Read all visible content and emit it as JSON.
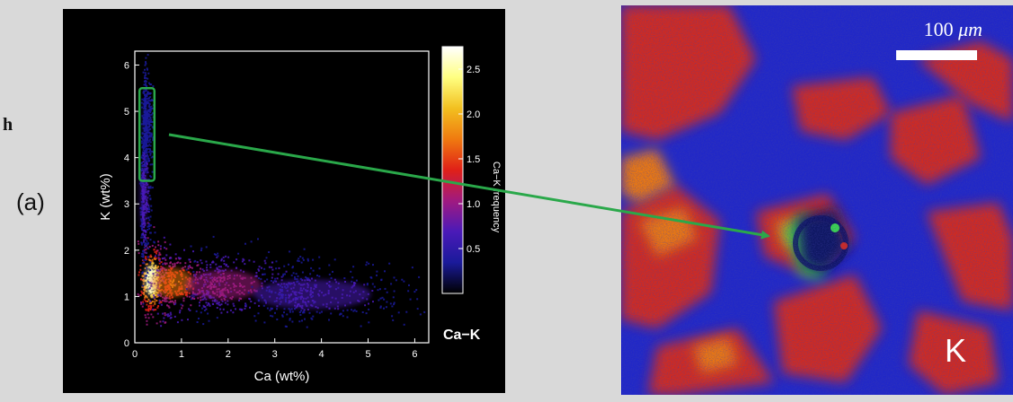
{
  "stray_letter": "h",
  "panel_label": "(a)",
  "chart_data": {
    "type": "scatter",
    "subtype": "density-scatter",
    "title": "",
    "xlabel": "Ca (wt%)",
    "ylabel": "K (wt%)",
    "xlim": [
      0,
      6.3
    ],
    "ylim": [
      0,
      6.3
    ],
    "x_ticks": [
      0,
      1,
      2,
      3,
      4,
      5,
      6
    ],
    "y_ticks": [
      0,
      1,
      2,
      3,
      4,
      5,
      6
    ],
    "grid": false,
    "plot_tag": "Ca−K",
    "colorbar": {
      "label": "Ca−K frequency",
      "ticks": [
        0.5,
        1.0,
        1.5,
        2.0,
        2.5
      ],
      "range": [
        0,
        2.75
      ],
      "colors": [
        "#000000",
        "#1a1a9a",
        "#4a1ab8",
        "#a01a80",
        "#e02018",
        "#f07a10",
        "#f2c020",
        "#ffff80",
        "#ffffff"
      ]
    },
    "density_blobs": [
      {
        "x": 0.35,
        "y": 1.35,
        "sx": 0.16,
        "sy": 0.38,
        "level": 2.6
      },
      {
        "x": 0.8,
        "y": 1.3,
        "sx": 0.5,
        "sy": 0.35,
        "level": 1.6
      },
      {
        "x": 1.9,
        "y": 1.25,
        "sx": 0.9,
        "sy": 0.35,
        "level": 1.1
      },
      {
        "x": 3.8,
        "y": 1.05,
        "sx": 1.4,
        "sy": 0.35,
        "level": 0.7
      },
      {
        "x": 0.18,
        "y": 3.2,
        "sx": 0.08,
        "sy": 0.8,
        "level": 0.8
      },
      {
        "x": 0.22,
        "y": 4.8,
        "sx": 0.07,
        "sy": 0.5,
        "level": 0.5
      }
    ],
    "selection_box": {
      "x0": 0.1,
      "x1": 0.42,
      "y0": 3.5,
      "y1": 5.5,
      "color": "#2aa84a"
    }
  },
  "map": {
    "scale_value": "100",
    "scale_unit": "μm",
    "element_label": "K",
    "colors": {
      "background": "#2027c8",
      "red": "#d52a1c",
      "orange": "#f07a10",
      "green": "#3be04a",
      "dark": "#0d1260"
    }
  },
  "arrow": {
    "color": "#2aa84a"
  }
}
